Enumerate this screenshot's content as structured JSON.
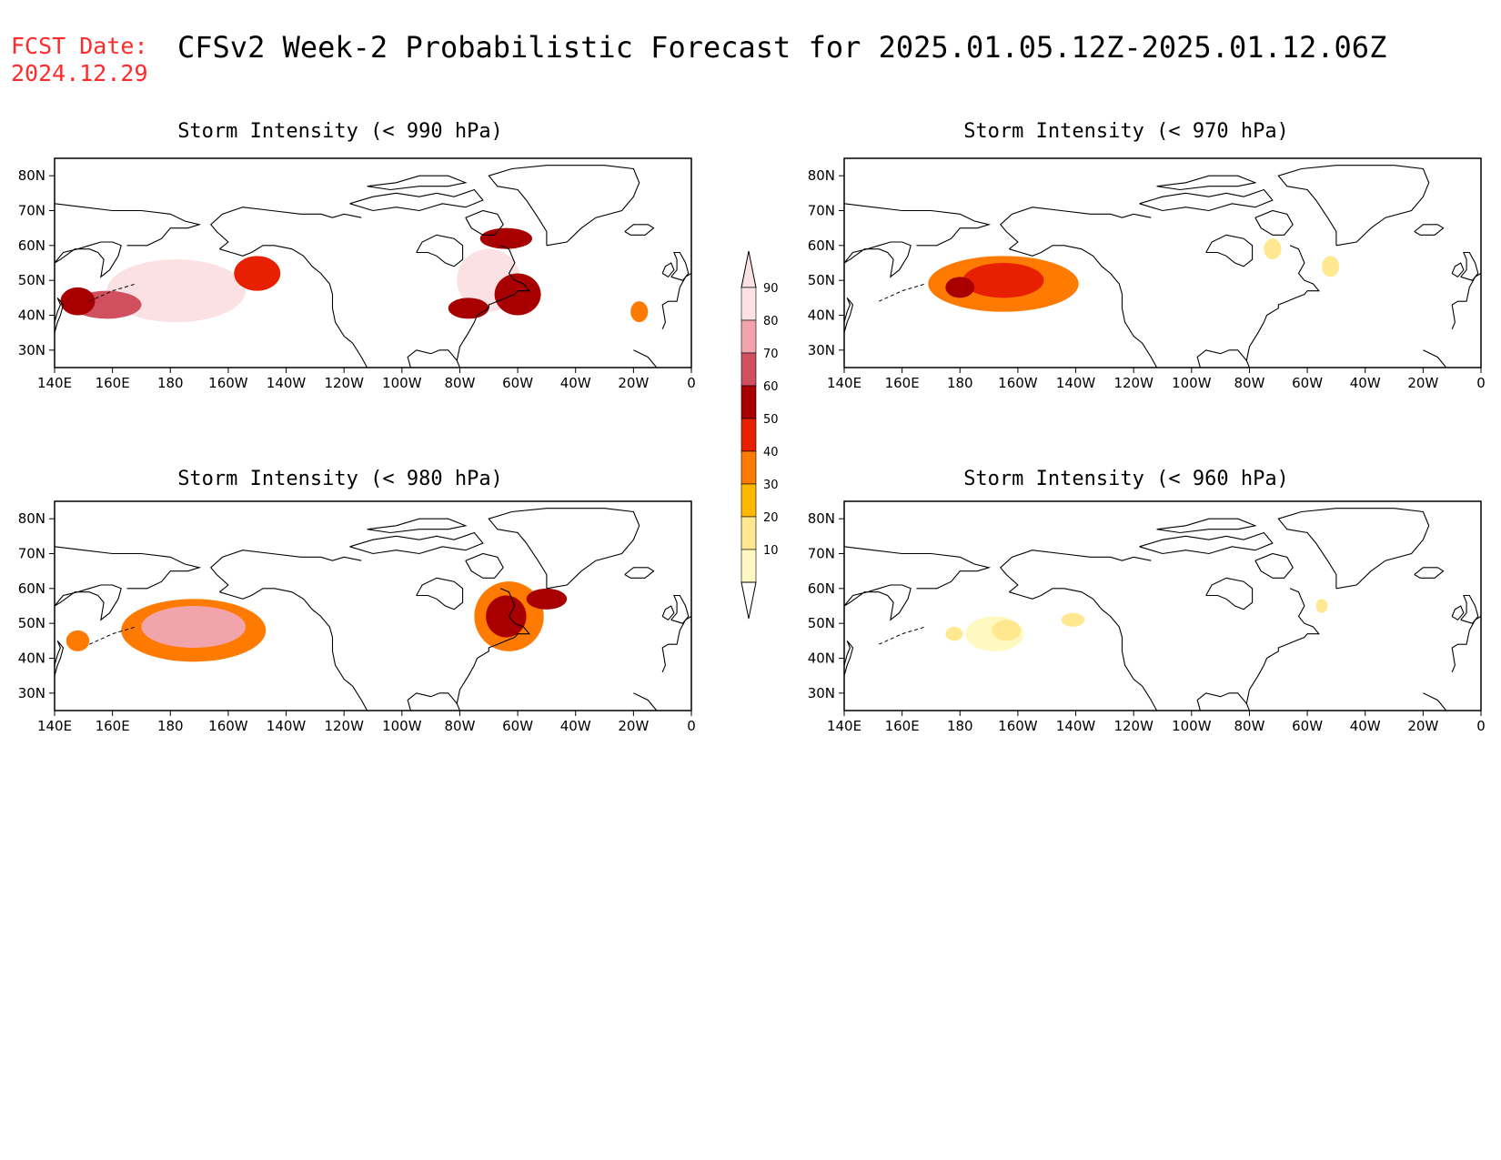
{
  "header": {
    "fcst_label": "FCST Date:",
    "fcst_date": "2024.12.29",
    "title": "CFSv2 Week-2 Probabilistic Forecast for 2025.01.05.12Z-2025.01.12.06Z"
  },
  "axes": {
    "x_ticks": [
      "140E",
      "160E",
      "180",
      "160W",
      "140W",
      "120W",
      "100W",
      "80W",
      "60W",
      "40W",
      "20W",
      "0"
    ],
    "y_ticks": [
      "80N",
      "70N",
      "60N",
      "50N",
      "40N",
      "30N"
    ],
    "lon_range": [
      140,
      360
    ],
    "lat_range": [
      25,
      85
    ]
  },
  "colorbar": {
    "levels": [
      10,
      20,
      30,
      40,
      50,
      60,
      70,
      80,
      90
    ],
    "labels": [
      "10",
      "20",
      "30",
      "40",
      "50",
      "60",
      "70",
      "80",
      "90"
    ],
    "colors": [
      "#fff8c0",
      "#ffe890",
      "#ffb800",
      "#ff7a00",
      "#e62000",
      "#a80000",
      "#d05060",
      "#f2a4ac",
      "#fbe0e4"
    ]
  },
  "panels": [
    {
      "id": "p990",
      "title": "Storm Intensity (< 990 hPa)",
      "regions": [
        {
          "lon": 182,
          "lat": 47,
          "rx": 24,
          "ry": 9,
          "level": 90
        },
        {
          "lon": 158,
          "lat": 43,
          "rx": 12,
          "ry": 4,
          "level": 70
        },
        {
          "lon": 148,
          "lat": 44,
          "rx": 6,
          "ry": 4,
          "level": 60
        },
        {
          "lon": 210,
          "lat": 52,
          "rx": 8,
          "ry": 5,
          "level": 50
        },
        {
          "lon": 290,
          "lat": 50,
          "rx": 11,
          "ry": 9,
          "level": 90
        },
        {
          "lon": 300,
          "lat": 46,
          "rx": 8,
          "ry": 6,
          "level": 60
        },
        {
          "lon": 283,
          "lat": 42,
          "rx": 7,
          "ry": 3,
          "level": 60
        },
        {
          "lon": 296,
          "lat": 62,
          "rx": 9,
          "ry": 3,
          "level": 60
        },
        {
          "lon": 342,
          "lat": 41,
          "rx": 3,
          "ry": 3,
          "level": 40
        }
      ]
    },
    {
      "id": "p970",
      "title": "Storm Intensity (< 970 hPa)",
      "regions": [
        {
          "lon": 195,
          "lat": 49,
          "rx": 26,
          "ry": 8,
          "level": 40
        },
        {
          "lon": 195,
          "lat": 50,
          "rx": 14,
          "ry": 5,
          "level": 50
        },
        {
          "lon": 180,
          "lat": 48,
          "rx": 5,
          "ry": 3,
          "level": 60
        },
        {
          "lon": 308,
          "lat": 54,
          "rx": 3,
          "ry": 3,
          "level": 20
        },
        {
          "lon": 288,
          "lat": 59,
          "rx": 3,
          "ry": 3,
          "level": 20
        }
      ]
    },
    {
      "id": "p980",
      "title": "Storm Intensity (< 980 hPa)",
      "regions": [
        {
          "lon": 188,
          "lat": 48,
          "rx": 25,
          "ry": 9,
          "level": 40
        },
        {
          "lon": 188,
          "lat": 49,
          "rx": 18,
          "ry": 6,
          "level": 80
        },
        {
          "lon": 148,
          "lat": 45,
          "rx": 4,
          "ry": 3,
          "level": 40
        },
        {
          "lon": 297,
          "lat": 52,
          "rx": 12,
          "ry": 10,
          "level": 40
        },
        {
          "lon": 296,
          "lat": 52,
          "rx": 7,
          "ry": 6,
          "level": 60
        },
        {
          "lon": 310,
          "lat": 57,
          "rx": 7,
          "ry": 3,
          "level": 60
        }
      ]
    },
    {
      "id": "p960",
      "title": "Storm Intensity (< 960 hPa)",
      "regions": [
        {
          "lon": 192,
          "lat": 47,
          "rx": 10,
          "ry": 5,
          "level": 10
        },
        {
          "lon": 196,
          "lat": 48,
          "rx": 5,
          "ry": 3,
          "level": 20
        },
        {
          "lon": 219,
          "lat": 51,
          "rx": 4,
          "ry": 2,
          "level": 20
        },
        {
          "lon": 178,
          "lat": 47,
          "rx": 3,
          "ry": 2,
          "level": 20
        },
        {
          "lon": 305,
          "lat": 55,
          "rx": 2,
          "ry": 2,
          "level": 20
        }
      ]
    }
  ]
}
